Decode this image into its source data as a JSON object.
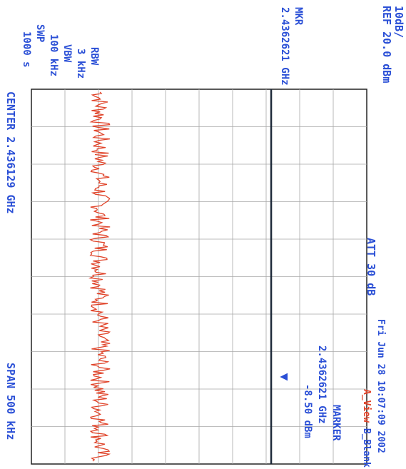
{
  "header": {
    "ref_level": "REF 20.0 dBm",
    "scale": "10dB/",
    "attenuation": "ATT 30 dB",
    "timestamp": "Fri Jun 28 10:07:09 2002",
    "trace_mode_a": "A_View",
    "trace_mode_b": "B_Blank"
  },
  "settings": {
    "rbw_label": "RBW",
    "rbw_value": "3 kHz",
    "vbw_label": "VBW",
    "vbw_value": "100 kHz",
    "swp_label": "SWP",
    "swp_value": "1000 s"
  },
  "marker": {
    "readout_label": "MKR",
    "readout_freq": "2.4362621 GHz",
    "box_title": "MARKER",
    "box_freq": "2.4362621 GHz",
    "box_level": "-8.50 dBm",
    "symbol": "▼"
  },
  "footer": {
    "center": "CENTER 2.436129 GHz",
    "span": "SPAN 500 kHz"
  },
  "colors": {
    "label_blue": "#2a4fd6",
    "trace_red": "#e0442a",
    "grid": "#a8a8a8",
    "border": "#222222",
    "marker_line": "#1e2a3a"
  },
  "chart_data": {
    "type": "line",
    "title": "",
    "orientation": "rotated 90 degrees clockwise (frequency runs top to bottom)",
    "xlabel": "",
    "ylabel": "",
    "x_range_hz": [
      2435879000,
      2436379000
    ],
    "y_range_dbm": [
      -80,
      20
    ],
    "grid": true,
    "grid_divisions": {
      "frequency": 10,
      "amplitude": 10
    },
    "series": [
      {
        "noise_floor_dbm": -59.5,
        "approx_peak_to_peak_db": 3
      }
    ],
    "markers": [
      {
        "frequency_ghz": 2.4362621,
        "level_dbm": -8.5
      }
    ]
  }
}
